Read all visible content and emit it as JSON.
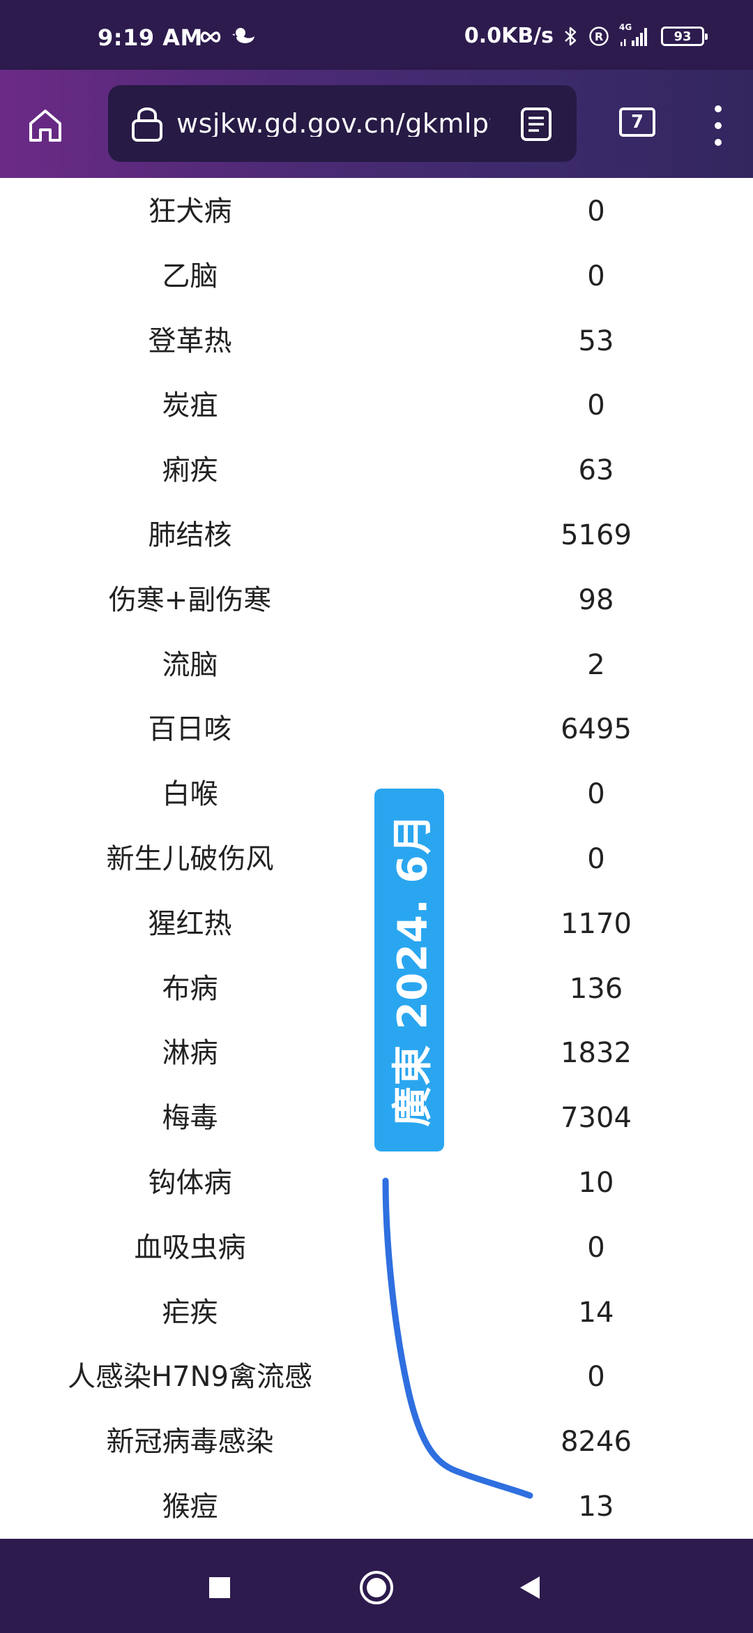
{
  "status_bar": {
    "time": "9:19 AM",
    "net_speed": "0.0KB/s",
    "battery": "93",
    "network_type": "4G",
    "icons": [
      "infinity-icon",
      "duck-icon",
      "bluetooth-icon",
      "registered-icon",
      "signal-icon",
      "battery-icon"
    ]
  },
  "browser": {
    "url": "wsjkw.gd.gov.cn/gkmlpt/",
    "tab_count": "7"
  },
  "table": {
    "rows": [
      {
        "name": "狂犬病",
        "value": "0"
      },
      {
        "name": "乙脑",
        "value": "0"
      },
      {
        "name": "登革热",
        "value": "53"
      },
      {
        "name": "炭疽",
        "value": "0"
      },
      {
        "name": "痢疾",
        "value": "63"
      },
      {
        "name": "肺结核",
        "value": "5169"
      },
      {
        "name": "伤寒+副伤寒",
        "value": "98"
      },
      {
        "name": "流脑",
        "value": "2"
      },
      {
        "name": "百日咳",
        "value": "6495"
      },
      {
        "name": "白喉",
        "value": "0"
      },
      {
        "name": "新生儿破伤风",
        "value": "0"
      },
      {
        "name": "猩红热",
        "value": "1170"
      },
      {
        "name": "布病",
        "value": "136"
      },
      {
        "name": "淋病",
        "value": "1832"
      },
      {
        "name": "梅毒",
        "value": "7304"
      },
      {
        "name": "钩体病",
        "value": "10"
      },
      {
        "name": "血吸虫病",
        "value": "0"
      },
      {
        "name": "疟疾",
        "value": "14"
      },
      {
        "name": "人感染H7N9禽流感",
        "value": "0"
      },
      {
        "name": "新冠病毒感染",
        "value": "8246"
      },
      {
        "name": "猴痘",
        "value": "13"
      }
    ]
  },
  "overlay": {
    "label": "廣東 2024. 6月"
  },
  "colors": {
    "status_bar_bg": "#2d1b4e",
    "toolbar_gradient_start": "#6b2a86",
    "toolbar_gradient_end": "#33265e",
    "overlay_bg": "#2aa6f0",
    "annotation_stroke": "#2f6fe0",
    "text": "#222222"
  }
}
